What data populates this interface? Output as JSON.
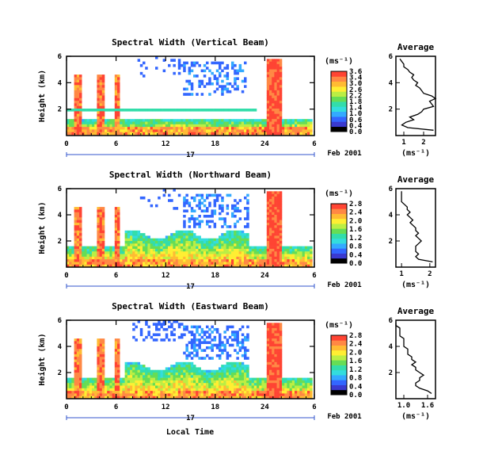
{
  "figure": {
    "xlabel": "Local Time",
    "date_label": "Feb 2001",
    "day_label": "17",
    "colorbar_unit": "(ms⁻¹)",
    "average_title": "Average",
    "average_xlabel": "(ms⁻¹)"
  },
  "chart_data": [
    {
      "type": "heatmap",
      "title": "Spectral Width (Vertical Beam)",
      "ylabel": "Height (km)",
      "xlabel": "Local Time",
      "x_ticks": [
        "0",
        "6",
        "12",
        "18",
        "24",
        "6"
      ],
      "x_range_hours": [
        0,
        30
      ],
      "y_ticks": [
        "6",
        "4",
        "2"
      ],
      "ylim_km": [
        0,
        6
      ],
      "colorbar": {
        "label": "(ms⁻¹)",
        "ticks": [
          "3.6",
          "3.4",
          "3.0",
          "2.6",
          "2.2",
          "1.8",
          "1.4",
          "1.0",
          "0.6",
          "0.4",
          "0.0"
        ],
        "range": [
          0.0,
          3.6
        ]
      },
      "profile": {
        "title": "Average",
        "xlabel": "(ms⁻¹)",
        "x_ticks": [
          "1",
          "2"
        ],
        "y_ticks": [
          "6",
          "4",
          "2"
        ],
        "xlim": [
          0.6,
          2.6
        ],
        "height_km": [
          0.4,
          0.6,
          0.8,
          1.0,
          1.2,
          1.4,
          1.6,
          1.8,
          2.0,
          2.2,
          2.4,
          2.6,
          2.8,
          3.0,
          3.2,
          3.4,
          3.6,
          3.8,
          4.0,
          4.2,
          4.4,
          4.6,
          4.8,
          5.0,
          5.2,
          5.4,
          5.6,
          5.8
        ],
        "width_ms": [
          2.5,
          1.2,
          0.9,
          1.1,
          1.5,
          1.3,
          1.7,
          1.9,
          2.0,
          2.5,
          2.4,
          2.3,
          2.6,
          2.4,
          2.0,
          1.9,
          1.8,
          1.6,
          1.7,
          1.5,
          1.4,
          1.5,
          1.3,
          1.2,
          1.0,
          1.0,
          0.9,
          0.8
        ]
      }
    },
    {
      "type": "heatmap",
      "title": "Spectral Width (Northward Beam)",
      "ylabel": "Height (km)",
      "xlabel": "Local Time",
      "x_ticks": [
        "0",
        "6",
        "12",
        "18",
        "24",
        "6"
      ],
      "x_range_hours": [
        0,
        30
      ],
      "y_ticks": [
        "6",
        "4",
        "2"
      ],
      "ylim_km": [
        0,
        6
      ],
      "colorbar": {
        "label": "(ms⁻¹)",
        "ticks": [
          "2.8",
          "2.4",
          "2.0",
          "1.6",
          "1.2",
          "0.8",
          "0.4",
          "0.0"
        ],
        "range": [
          0.0,
          2.8
        ]
      },
      "profile": {
        "title": "Average",
        "xlabel": "(ms⁻¹)",
        "x_ticks": [
          "1",
          "2"
        ],
        "y_ticks": [
          "6",
          "4",
          "2"
        ],
        "xlim": [
          0.8,
          2.2
        ],
        "height_km": [
          0.4,
          0.6,
          0.8,
          1.0,
          1.2,
          1.4,
          1.6,
          1.8,
          2.0,
          2.2,
          2.4,
          2.6,
          2.8,
          3.0,
          3.2,
          3.4,
          3.6,
          3.8,
          4.0,
          4.2,
          4.4,
          4.6,
          4.8,
          5.0,
          5.2,
          5.4,
          5.6,
          5.8
        ],
        "width_ms": [
          2.1,
          1.6,
          1.5,
          1.6,
          1.5,
          1.5,
          1.5,
          1.6,
          1.7,
          1.6,
          1.5,
          1.6,
          1.5,
          1.5,
          1.4,
          1.3,
          1.4,
          1.3,
          1.2,
          1.3,
          1.2,
          1.2,
          1.1,
          1.0,
          1.0,
          1.0,
          1.0,
          1.0
        ]
      }
    },
    {
      "type": "heatmap",
      "title": "Spectral Width (Eastward Beam)",
      "ylabel": "Height (km)",
      "xlabel": "Local Time",
      "x_ticks": [
        "0",
        "6",
        "12",
        "18",
        "24",
        "6"
      ],
      "x_range_hours": [
        0,
        30
      ],
      "y_ticks": [
        "6",
        "4",
        "2"
      ],
      "ylim_km": [
        0,
        6
      ],
      "colorbar": {
        "label": "(ms⁻¹)",
        "ticks": [
          "2.8",
          "2.4",
          "2.0",
          "1.6",
          "1.2",
          "0.8",
          "0.4",
          "0.0"
        ],
        "range": [
          0.0,
          2.8
        ]
      },
      "profile": {
        "title": "Average",
        "xlabel": "(ms⁻¹)",
        "x_ticks": [
          "1.0",
          "1.6"
        ],
        "y_ticks": [
          "6",
          "4",
          "2"
        ],
        "xlim": [
          0.8,
          1.8
        ],
        "height_km": [
          0.4,
          0.6,
          0.8,
          1.0,
          1.2,
          1.4,
          1.6,
          1.8,
          2.0,
          2.2,
          2.4,
          2.6,
          2.8,
          3.0,
          3.2,
          3.4,
          3.6,
          3.8,
          4.0,
          4.2,
          4.4,
          4.6,
          4.8,
          5.0,
          5.2,
          5.4,
          5.6,
          5.8
        ],
        "width_ms": [
          1.7,
          1.6,
          1.4,
          1.3,
          1.3,
          1.4,
          1.4,
          1.5,
          1.4,
          1.3,
          1.3,
          1.2,
          1.3,
          1.2,
          1.2,
          1.1,
          1.1,
          1.1,
          1.0,
          1.0,
          1.0,
          1.0,
          0.9,
          0.9,
          0.9,
          0.9,
          0.8,
          0.8
        ]
      }
    }
  ]
}
